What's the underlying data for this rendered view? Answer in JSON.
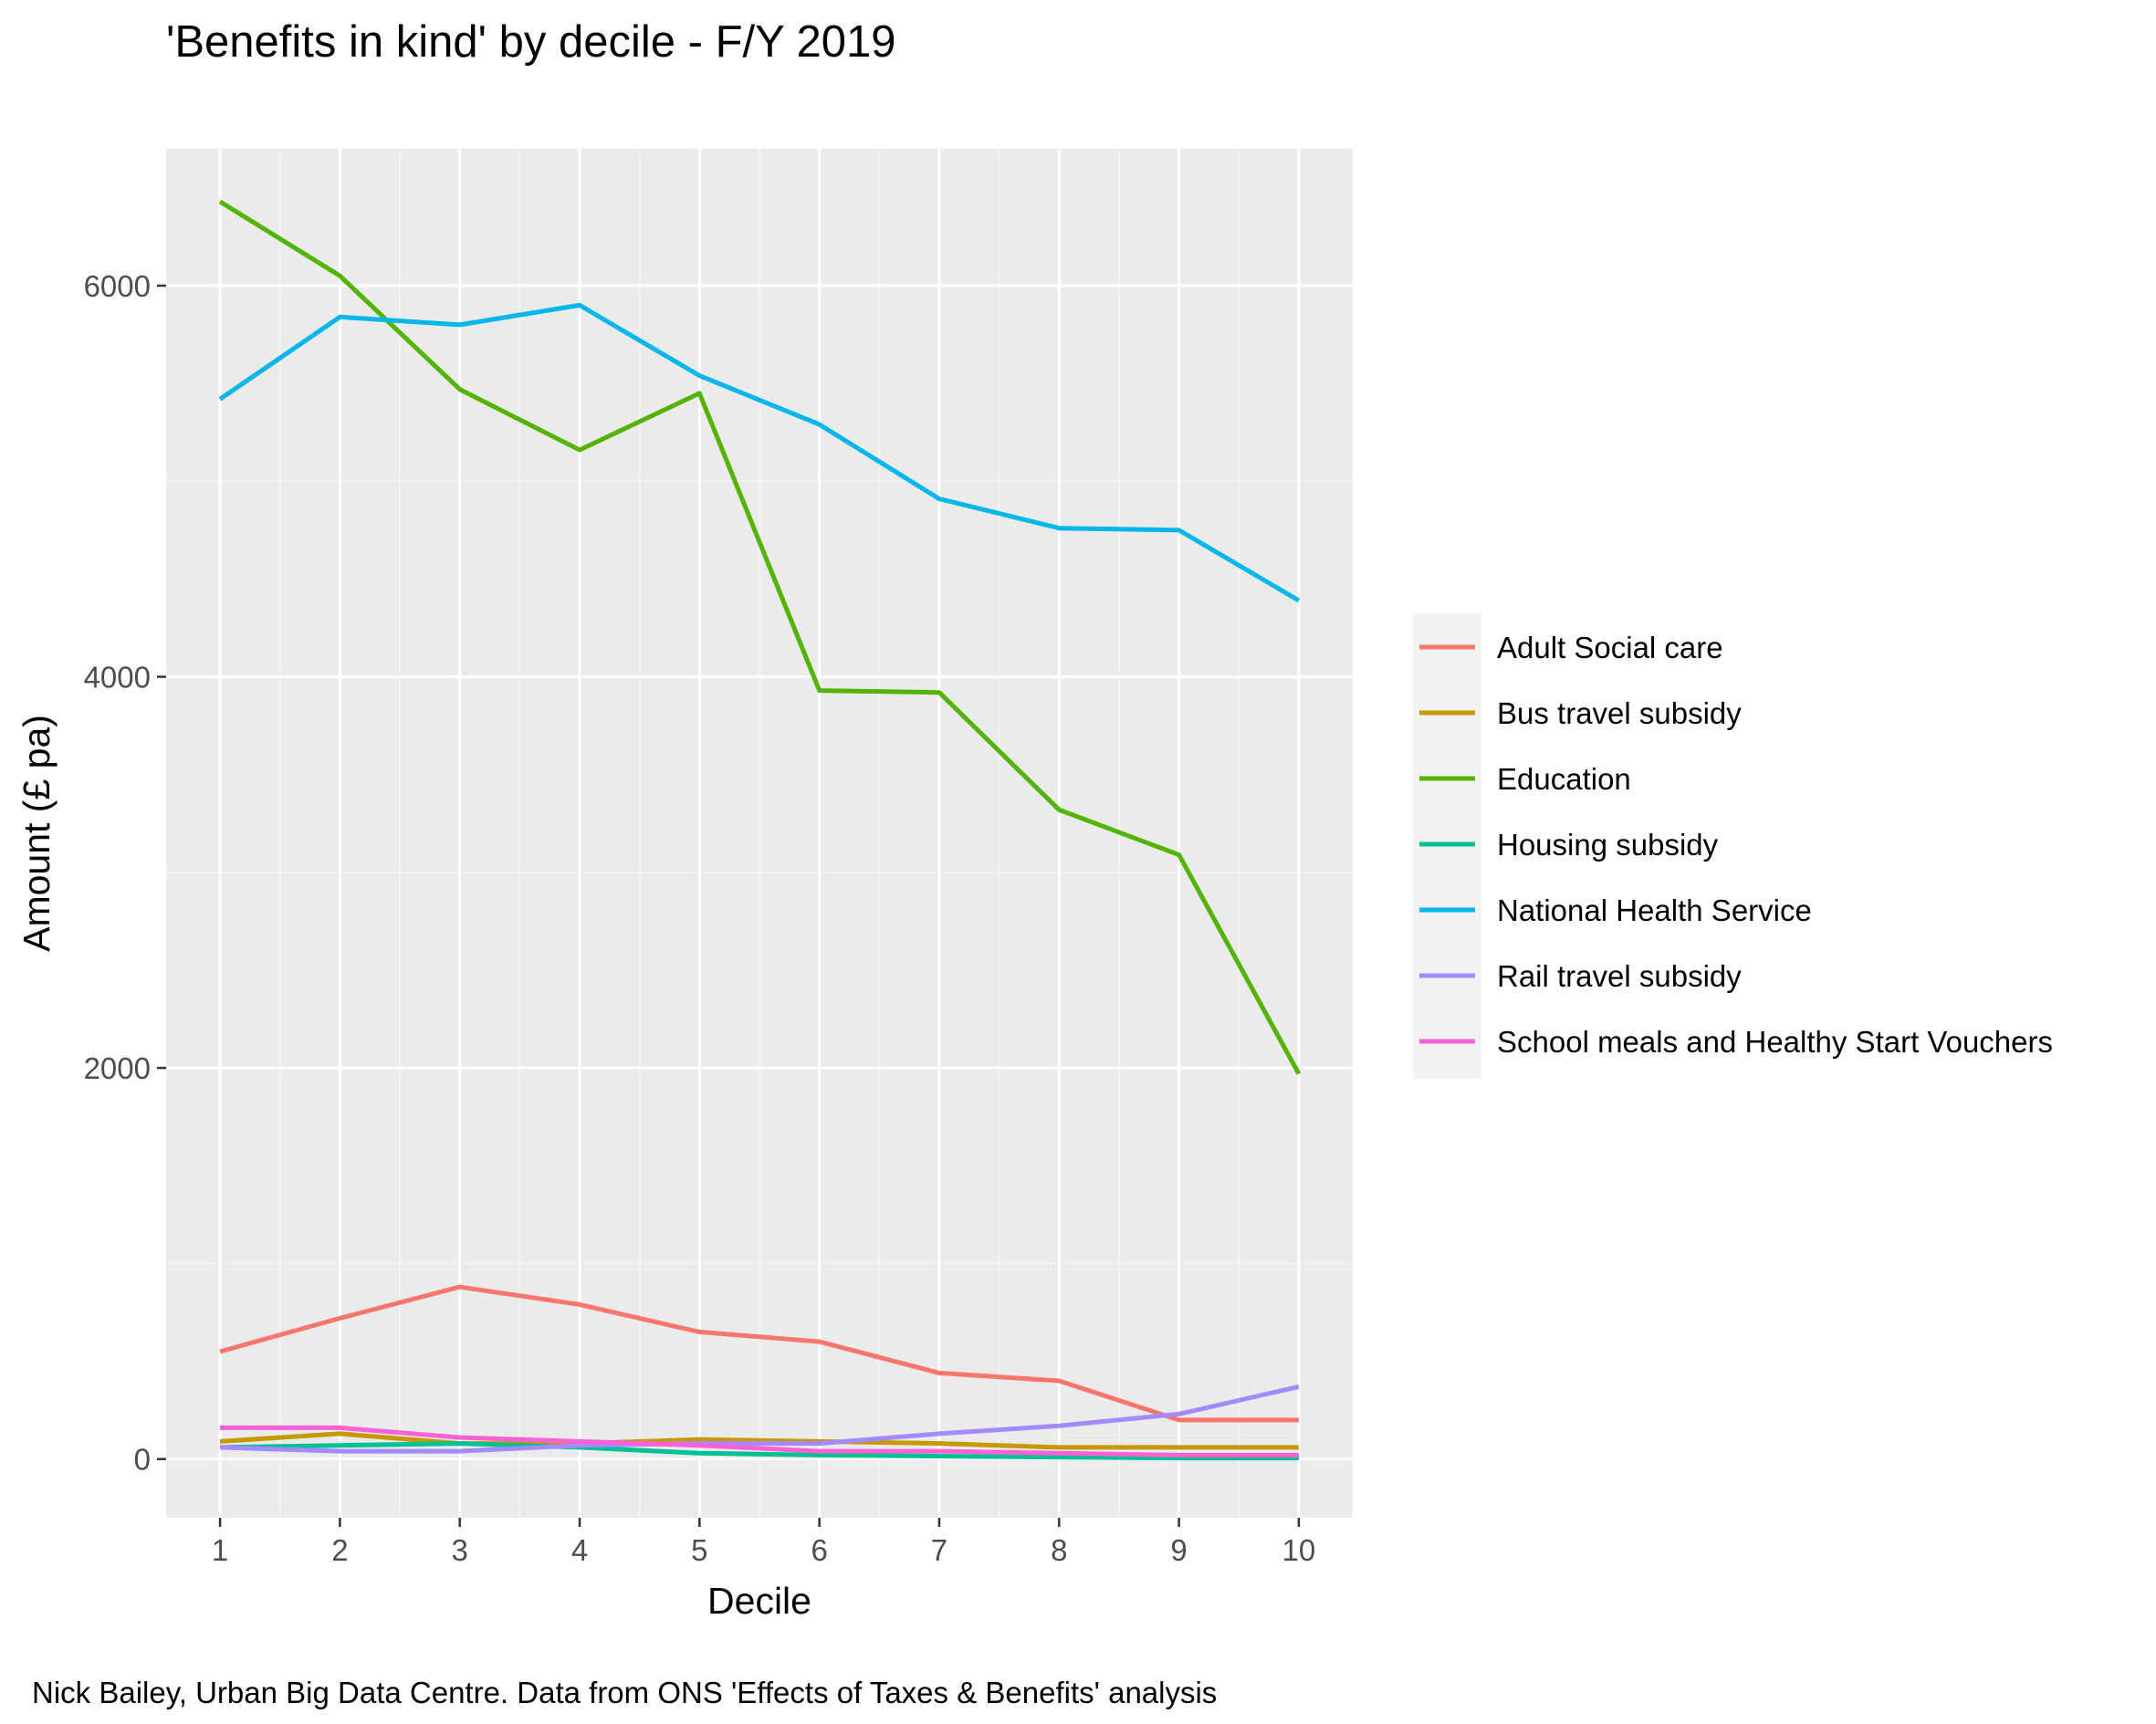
{
  "chart_data": {
    "type": "line",
    "title": "'Benefits in kind' by decile - F/Y 2019",
    "caption": "Nick Bailey, Urban Big Data Centre. Data from ONS 'Effects of Taxes & Benefits' analysis",
    "xlabel": "Decile",
    "ylabel": "Amount (£ pa)",
    "x": [
      1,
      2,
      3,
      4,
      5,
      6,
      7,
      8,
      9,
      10
    ],
    "x_ticks": [
      "1",
      "2",
      "3",
      "4",
      "5",
      "6",
      "7",
      "8",
      "9",
      "10"
    ],
    "y_ticks": [
      0,
      2000,
      4000,
      6000
    ],
    "y_tick_labels": [
      "0",
      "2000",
      "4000",
      "6000"
    ],
    "xlim": [
      0.55,
      10.45
    ],
    "ylim": [
      -300,
      6700
    ],
    "grid": true,
    "legend_position": "right",
    "series": [
      {
        "name": "Adult Social care",
        "color": "#F8766D",
        "values": [
          550,
          720,
          880,
          790,
          650,
          600,
          440,
          400,
          200,
          200
        ]
      },
      {
        "name": "Bus travel subsidy",
        "color": "#C49A00",
        "values": [
          90,
          130,
          80,
          80,
          100,
          90,
          80,
          60,
          60,
          60
        ]
      },
      {
        "name": "Education",
        "color": "#53B400",
        "values": [
          6430,
          6050,
          5470,
          5160,
          5450,
          3930,
          3920,
          3320,
          3090,
          1970
        ]
      },
      {
        "name": "Housing subsidy",
        "color": "#00C094",
        "values": [
          60,
          70,
          80,
          60,
          30,
          20,
          15,
          10,
          5,
          5
        ]
      },
      {
        "name": "National Health Service",
        "color": "#00B6EB",
        "values": [
          5420,
          5840,
          5800,
          5900,
          5540,
          5290,
          4910,
          4760,
          4750,
          4390
        ]
      },
      {
        "name": "Rail travel subsidy",
        "color": "#A58AFF",
        "values": [
          60,
          40,
          40,
          70,
          80,
          80,
          130,
          170,
          230,
          370
        ]
      },
      {
        "name": "School meals and Healthy Start Vouchers",
        "color": "#FB61D7",
        "values": [
          160,
          160,
          110,
          90,
          70,
          40,
          40,
          30,
          20,
          20
        ]
      }
    ]
  }
}
